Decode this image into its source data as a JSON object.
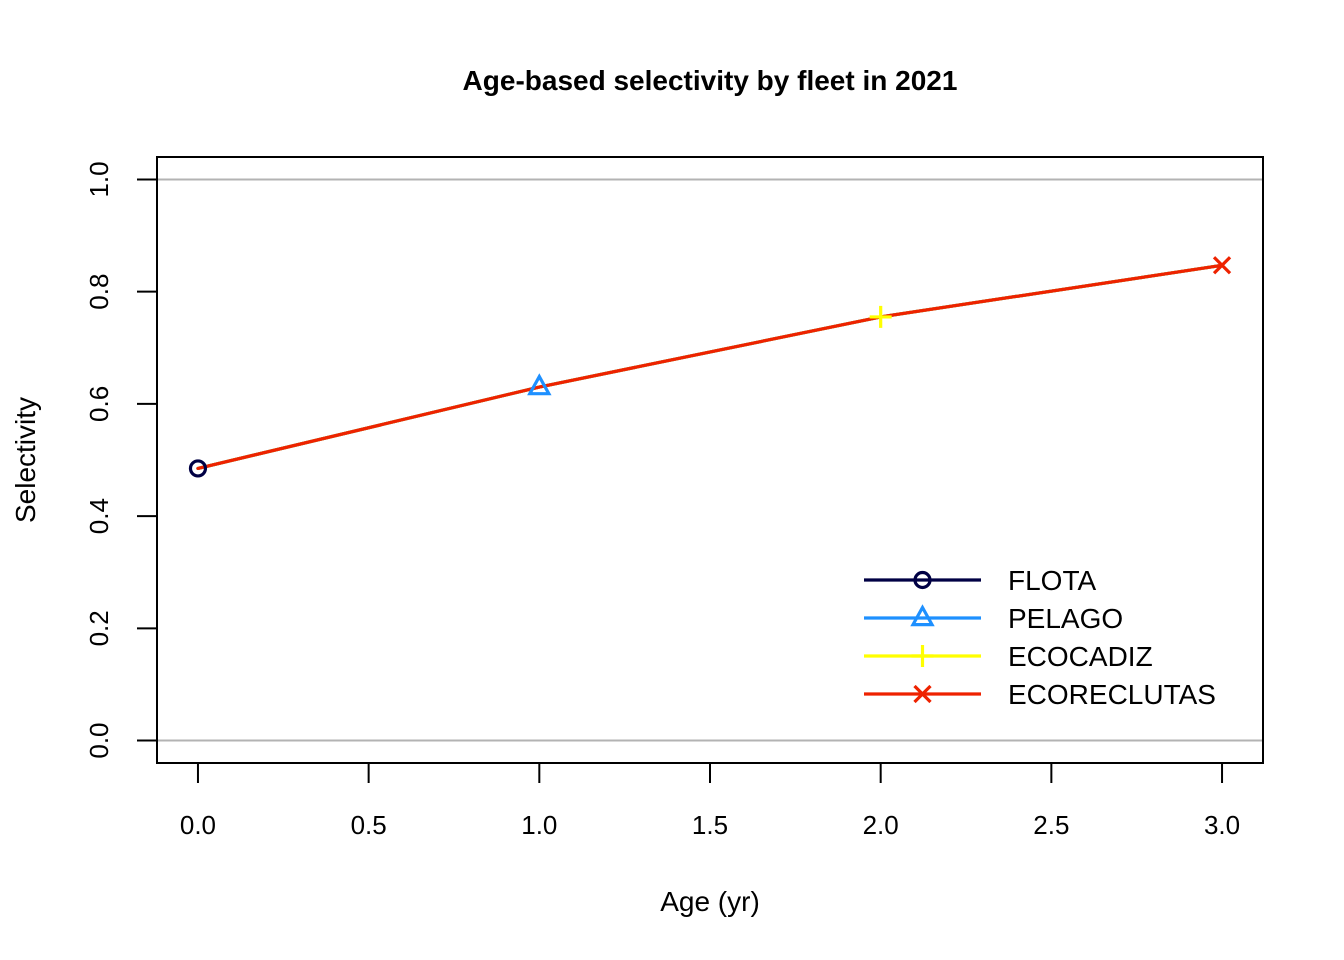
{
  "chart_data": {
    "type": "line",
    "title": "Age-based selectivity by fleet in 2021",
    "xlabel": "Age (yr)",
    "ylabel": "Selectivity",
    "xlim": [
      -0.12,
      3.12
    ],
    "ylim": [
      -0.04,
      1.04
    ],
    "x_ticks": [
      "0.0",
      "0.5",
      "1.0",
      "1.5",
      "2.0",
      "2.5",
      "3.0"
    ],
    "x_tick_values": [
      0,
      0.5,
      1,
      1.5,
      2,
      2.5,
      3
    ],
    "y_ticks": [
      "0.0",
      "0.2",
      "0.4",
      "0.6",
      "0.8",
      "1.0"
    ],
    "y_tick_values": [
      0,
      0.2,
      0.4,
      0.6,
      0.8,
      1.0
    ],
    "reference_lines_y": [
      0,
      1
    ],
    "legend_position": "bottom-right",
    "x": [
      0,
      1,
      2,
      3
    ],
    "series": [
      {
        "name": "FLOTA",
        "color": "#000044",
        "marker": "circle",
        "values": [
          0.485,
          0.63,
          0.755,
          0.847
        ]
      },
      {
        "name": "PELAGO",
        "color": "#1e90ff",
        "marker": "triangle",
        "values": [
          0.485,
          0.63,
          0.755,
          0.847
        ]
      },
      {
        "name": "ECOCADIZ",
        "color": "#ffff00",
        "marker": "plus",
        "values": [
          0.485,
          0.63,
          0.755,
          0.847
        ]
      },
      {
        "name": "ECORECLUTAS",
        "color": "#ee2200",
        "marker": "cross",
        "values": [
          0.485,
          0.63,
          0.755,
          0.847
        ]
      }
    ],
    "marker_points": [
      {
        "series": 0,
        "x": 0,
        "y": 0.485
      },
      {
        "series": 1,
        "x": 1,
        "y": 0.63
      },
      {
        "series": 2,
        "x": 2,
        "y": 0.755
      },
      {
        "series": 3,
        "x": 3,
        "y": 0.847
      }
    ]
  }
}
